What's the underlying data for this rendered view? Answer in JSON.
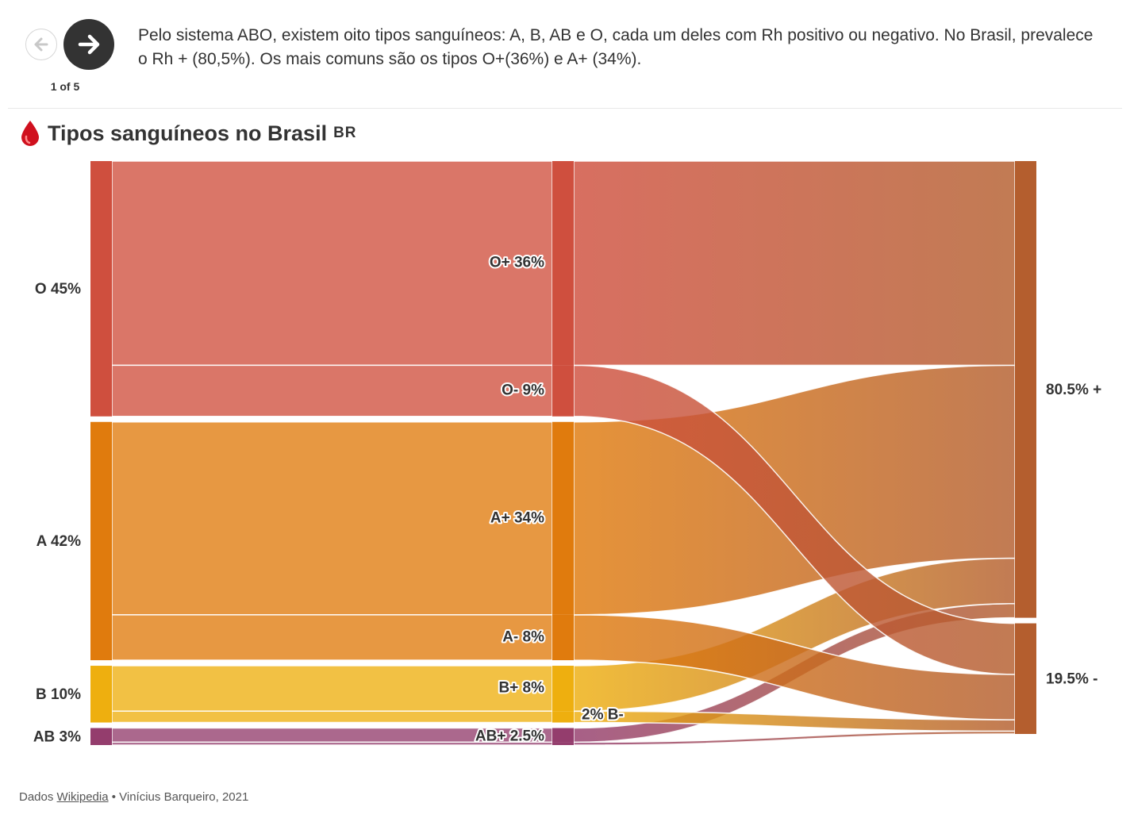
{
  "navigation": {
    "prev_icon": "arrow-left-icon",
    "next_icon": "arrow-right-icon",
    "counter": "1 of 5"
  },
  "caption": "Pelo sistema ABO, existem oito tipos sanguíneos: A, B, AB e O, cada um deles com Rh positivo ou negativo. No Brasil, prevalece o Rh + (80,5%). Os mais comuns são os tipos O+(36%) e A+ (34%).",
  "header": {
    "icon": "blood-drop-icon",
    "title": "Tipos sanguíneos no Brasil",
    "flag": "BR"
  },
  "colors": {
    "O": "#cf4f3e",
    "A": "#e07b0d",
    "B": "#eeaf0f",
    "AB": "#943d6d",
    "rh": "#b45e2e"
  },
  "chart_data": {
    "type": "sankey",
    "unit": "%",
    "columns": [
      "group",
      "type",
      "rh"
    ],
    "groups": [
      {
        "id": "O",
        "label": "O 45%",
        "value": 45
      },
      {
        "id": "A",
        "label": "A 42%",
        "value": 42
      },
      {
        "id": "B",
        "label": "B 10%",
        "value": 10
      },
      {
        "id": "AB",
        "label": "AB 3%",
        "value": 3
      }
    ],
    "types": [
      {
        "id": "O+",
        "label": "O+ 36%",
        "value": 36,
        "group": "O",
        "rh": "+"
      },
      {
        "id": "O-",
        "label": "O- 9%",
        "value": 9,
        "group": "O",
        "rh": "-"
      },
      {
        "id": "A+",
        "label": "A+ 34%",
        "value": 34,
        "group": "A",
        "rh": "+"
      },
      {
        "id": "A-",
        "label": "A- 8%",
        "value": 8,
        "group": "A",
        "rh": "-"
      },
      {
        "id": "B+",
        "label": "B+ 8%",
        "value": 8,
        "group": "B",
        "rh": "+"
      },
      {
        "id": "B-",
        "label": "2% B-",
        "value": 2,
        "group": "B",
        "rh": "-"
      },
      {
        "id": "AB+",
        "label": "AB+ 2.5%",
        "value": 2.5,
        "group": "AB",
        "rh": "+"
      },
      {
        "id": "AB-",
        "label": "",
        "value": 0.5,
        "group": "AB",
        "rh": "-"
      }
    ],
    "rh": [
      {
        "id": "+",
        "label": "80.5% +",
        "value": 80.5
      },
      {
        "id": "-",
        "label": "19.5% -",
        "value": 19.5
      }
    ]
  },
  "source": {
    "prefix": "Dados",
    "link_text": "Wikipedia",
    "suffix": "• Vinícius Barqueiro, 2021"
  }
}
